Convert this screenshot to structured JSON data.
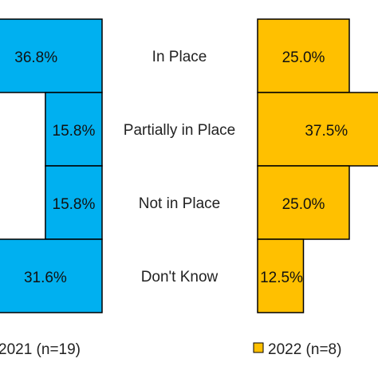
{
  "chart_data": {
    "type": "bar",
    "orientation": "horizontal",
    "layout": "butterfly",
    "categories": [
      "In Place",
      "Partially in Place",
      "Not in Place",
      "Don't Know"
    ],
    "series": [
      {
        "name": "2021 (n=19)",
        "values": [
          36.8,
          15.8,
          15.8,
          31.6
        ],
        "labels": [
          "36.8%",
          "15.8%",
          "15.8%",
          "31.6%"
        ],
        "color": "#00B0F0",
        "side": "left"
      },
      {
        "name": "2022 (n=8)",
        "values": [
          25.0,
          37.5,
          25.0,
          12.5
        ],
        "labels": [
          "25.0%",
          "37.5%",
          "25.0%",
          "12.5%"
        ],
        "color": "#FFC000",
        "side": "right"
      }
    ],
    "unit": "%",
    "legend_position": "bottom",
    "grid": false
  }
}
